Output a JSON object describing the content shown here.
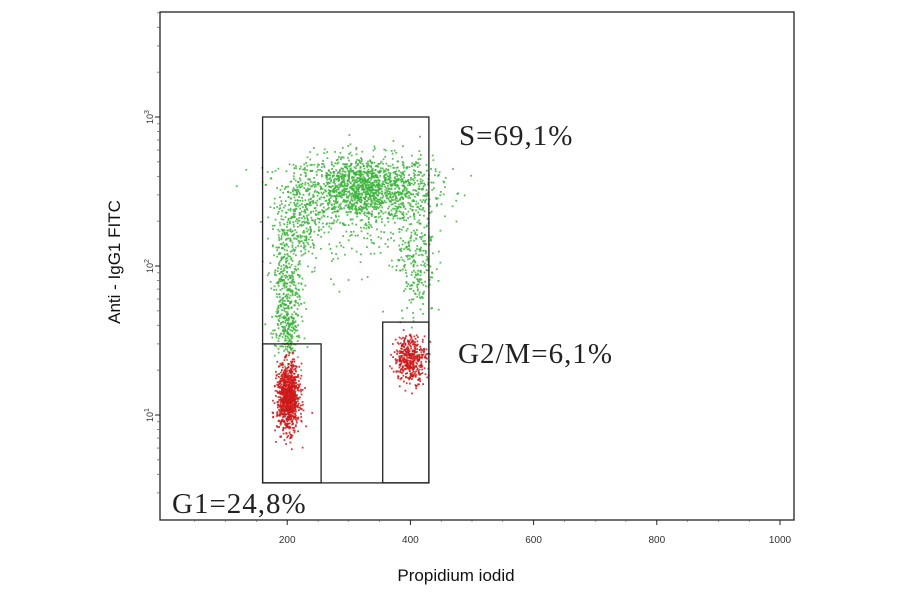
{
  "chart_data": {
    "type": "scatter",
    "title": "",
    "xlabel": "Propidium iodid",
    "ylabel": "Anti - IgG1 FITC",
    "xlim": [
      0,
      1000
    ],
    "ylim": [
      3,
      5000
    ],
    "yscale": "log",
    "x_ticks": [
      "200",
      "400",
      "600",
      "800",
      "1000"
    ],
    "x_tick_values": [
      200,
      400,
      600,
      800,
      1000
    ],
    "y_ticks": [
      {
        "base": "10",
        "exp": "1",
        "value": 10
      },
      {
        "base": "10",
        "exp": "2",
        "value": 100
      },
      {
        "base": "10",
        "exp": "3",
        "value": 1000
      }
    ],
    "grid": false,
    "legend": "none",
    "gates": [
      {
        "name": "S",
        "label": "S=69,1%",
        "percent": 69.1,
        "x_range": [
          160,
          430
        ],
        "y_range": [
          3.5,
          1000
        ],
        "color": "#222222"
      },
      {
        "name": "G1",
        "label": "G1=24,8%",
        "percent": 24.8,
        "x_range": [
          160,
          255
        ],
        "y_range": [
          3.5,
          30
        ],
        "color": "#222222"
      },
      {
        "name": "G2/M",
        "label": "G2/M=6,1%",
        "percent": 6.1,
        "x_range": [
          355,
          430
        ],
        "y_range": [
          3.5,
          42
        ],
        "color": "#222222"
      }
    ],
    "series": [
      {
        "color": "#3cb43c",
        "clusters": [
          {
            "x_mean": 325,
            "y_mean": 330,
            "x_sd": 55,
            "y_sd_log": 0.11,
            "count": 1500
          },
          {
            "x_mean": 220,
            "y_mean": 200,
            "x_sd": 18,
            "y_sd_log": 0.18,
            "count": 300
          },
          {
            "x_mean": 198,
            "y_mean": 75,
            "x_sd": 12,
            "y_sd_log": 0.2,
            "count": 330
          },
          {
            "x_mean": 200,
            "y_mean": 36,
            "x_sd": 10,
            "y_sd_log": 0.1,
            "count": 150
          },
          {
            "x_mean": 410,
            "y_mean": 120,
            "x_sd": 15,
            "y_sd_log": 0.22,
            "count": 250
          },
          {
            "x_mean": 330,
            "y_mean": 200,
            "x_sd": 40,
            "y_sd_log": 0.2,
            "count": 150
          }
        ]
      },
      {
        "color": "#cc1a1a",
        "clusters": [
          {
            "x_mean": 202,
            "y_mean": 13,
            "x_sd": 9,
            "y_sd_log": 0.11,
            "count": 950
          },
          {
            "x_mean": 400,
            "y_mean": 24,
            "x_sd": 13,
            "y_sd_log": 0.08,
            "count": 420
          }
        ]
      }
    ]
  }
}
